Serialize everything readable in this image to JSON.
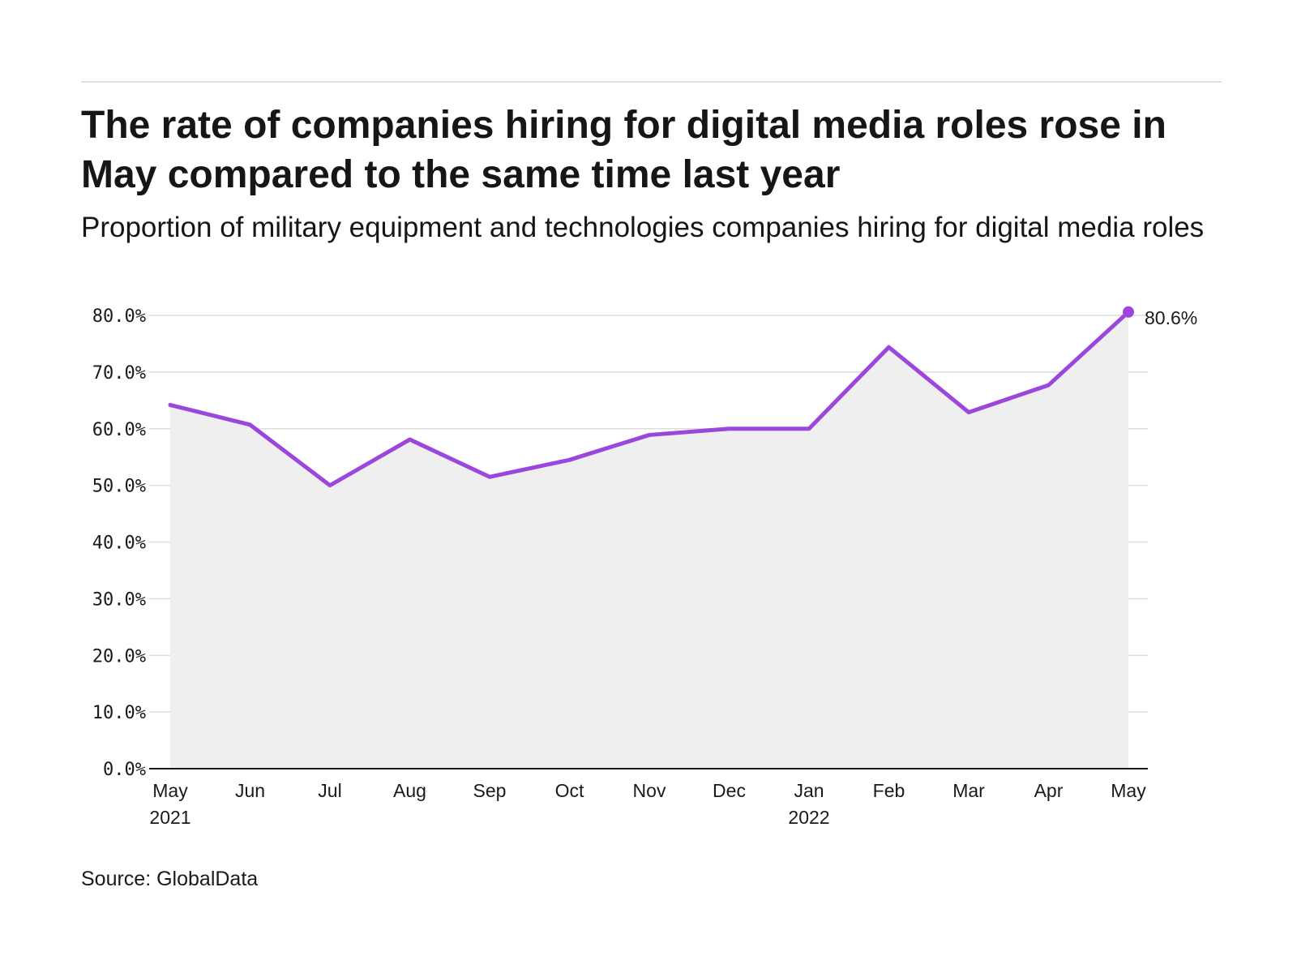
{
  "title": "The rate of companies hiring for digital media roles rose in May compared to the same time last year",
  "subtitle": "Proportion of military equipment and technologies companies hiring for digital media roles",
  "source": "Source: GlobalData",
  "colors": {
    "line": "#9b46dc",
    "area": "#efefef",
    "grid": "#dcdcdc",
    "axis": "#1a1a1a"
  },
  "chart_data": {
    "type": "line",
    "categories": [
      "May",
      "Jun",
      "Jul",
      "Aug",
      "Sep",
      "Oct",
      "Nov",
      "Dec",
      "Jan",
      "Feb",
      "Mar",
      "Apr",
      "May"
    ],
    "year_labels": [
      "2021",
      "",
      "",
      "",
      "",
      "",
      "",
      "",
      "2022",
      "",
      "",
      "",
      ""
    ],
    "series": [
      {
        "values": [
          64.2,
          60.7,
          50.0,
          58.1,
          51.5,
          54.5,
          58.9,
          60.0,
          60.0,
          74.4,
          62.9,
          67.7,
          80.6
        ]
      }
    ],
    "y_ticks": [
      "0.0%",
      "10.0%",
      "20.0%",
      "30.0%",
      "40.0%",
      "50.0%",
      "60.0%",
      "70.0%",
      "80.0%"
    ],
    "ylim": [
      0,
      80
    ],
    "end_label": "80.6%",
    "area_fill": true,
    "grid": true
  }
}
